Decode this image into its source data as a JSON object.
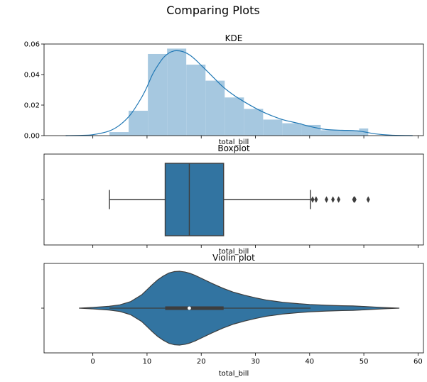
{
  "figure": {
    "suptitle": "Comparing Plots"
  },
  "chart_data": [
    {
      "type": "histogram_kde",
      "title": "KDE",
      "xlabel": "total_bill",
      "ylabel": "",
      "xlim": [
        -9,
        61
      ],
      "ylim": [
        0,
        0.06
      ],
      "yticks": [
        0.0,
        0.02,
        0.04,
        0.06
      ],
      "ytick_labels": [
        "0.00",
        "0.02",
        "0.04",
        "0.06"
      ],
      "xticks": [
        0,
        10,
        20,
        30,
        40,
        50,
        60
      ],
      "x_tick_labels_visible": false,
      "grid": false,
      "bar_color": "#a6c8e0",
      "line_color": "#1f77b4",
      "hist_bins": [
        {
          "x0": 3.07,
          "x1": 6.61,
          "density": 0.0023
        },
        {
          "x0": 6.61,
          "x1": 10.16,
          "density": 0.0163
        },
        {
          "x0": 10.16,
          "x1": 13.7,
          "density": 0.0535
        },
        {
          "x0": 13.7,
          "x1": 17.24,
          "density": 0.057
        },
        {
          "x0": 17.24,
          "x1": 20.79,
          "density": 0.0465
        },
        {
          "x0": 20.79,
          "x1": 24.33,
          "density": 0.036
        },
        {
          "x0": 24.33,
          "x1": 27.88,
          "density": 0.025
        },
        {
          "x0": 27.88,
          "x1": 31.42,
          "density": 0.0175
        },
        {
          "x0": 31.42,
          "x1": 34.96,
          "density": 0.0105
        },
        {
          "x0": 34.96,
          "x1": 38.51,
          "density": 0.0081
        },
        {
          "x0": 38.51,
          "x1": 42.05,
          "density": 0.007
        },
        {
          "x0": 42.05,
          "x1": 45.59,
          "density": 0.0035
        },
        {
          "x0": 45.59,
          "x1": 49.14,
          "density": 0.0035
        },
        {
          "x0": 49.14,
          "x1": 50.81,
          "density": 0.0047
        }
      ],
      "kde": {
        "x": [
          -5,
          -2,
          0,
          3,
          5,
          7,
          9,
          10,
          11,
          12,
          13,
          14,
          15,
          16,
          17,
          18,
          19,
          20,
          22,
          24,
          26,
          28,
          30,
          32,
          35,
          38,
          40,
          43,
          46,
          48,
          50,
          52,
          55,
          59
        ],
        "y": [
          0.0,
          0.0002,
          0.0006,
          0.003,
          0.007,
          0.014,
          0.025,
          0.032,
          0.04,
          0.046,
          0.051,
          0.054,
          0.0555,
          0.0555,
          0.0545,
          0.0525,
          0.0495,
          0.046,
          0.039,
          0.032,
          0.0265,
          0.022,
          0.018,
          0.0145,
          0.0105,
          0.008,
          0.006,
          0.004,
          0.0035,
          0.0033,
          0.0025,
          0.0012,
          0.0003,
          0.0
        ]
      }
    },
    {
      "type": "boxplot",
      "title": "Boxplot",
      "xlabel": "total_bill",
      "xlim": [
        -9,
        61
      ],
      "xticks": [
        0,
        10,
        20,
        30,
        40,
        50,
        60
      ],
      "x_tick_labels_visible": false,
      "color": "#3274a1",
      "edge_color": "#3d3d3d",
      "whisker_low": 3.07,
      "q1": 13.35,
      "median": 17.8,
      "q3": 24.13,
      "whisker_high": 40.17,
      "outliers": [
        40.55,
        41.19,
        43.11,
        44.3,
        45.35,
        48.17,
        48.27,
        48.33,
        50.81
      ]
    },
    {
      "type": "violin",
      "title": "Violin plot",
      "xlabel": "total_bill",
      "xlim": [
        -9,
        61
      ],
      "xticks": [
        0,
        10,
        20,
        30,
        40,
        50,
        60
      ],
      "xtick_labels": [
        "0",
        "10",
        "20",
        "30",
        "40",
        "50",
        "60"
      ],
      "color": "#3274a1",
      "edge_color": "#3d3d3d",
      "violin_extent": [
        -2.5,
        56.5
      ],
      "box_q1": 13.35,
      "box_q3": 24.13,
      "whisker_low": 3.07,
      "whisker_high": 40.17,
      "median": 17.8
    }
  ]
}
